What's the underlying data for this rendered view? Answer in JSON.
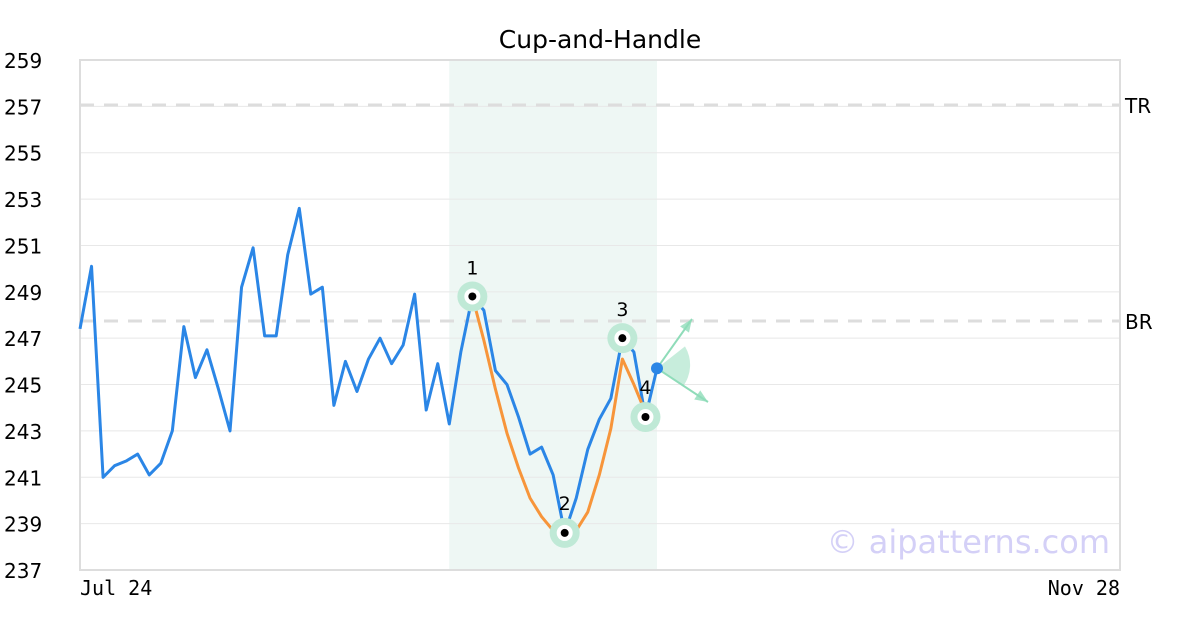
{
  "chart_data": {
    "type": "line",
    "title": "Cup-and-Handle",
    "ylim": [
      237,
      259
    ],
    "yticks": [
      237,
      239,
      241,
      243,
      245,
      247,
      249,
      251,
      253,
      255,
      257,
      259
    ],
    "xtick_labels": [
      {
        "index": 0,
        "label": "Jul 24"
      },
      {
        "index": 90,
        "label": "Nov 28"
      }
    ],
    "grid": true,
    "series": [
      {
        "color": "#2b86e6",
        "values": [
          247.4,
          250.1,
          241.0,
          241.5,
          241.7,
          242.0,
          241.1,
          241.6,
          243.0,
          247.5,
          245.3,
          246.5,
          244.8,
          243.0,
          249.2,
          250.9,
          247.1,
          247.1,
          250.6,
          252.6,
          248.9,
          249.2,
          244.1,
          246.0,
          244.7,
          246.1,
          247.0,
          245.9,
          246.7,
          248.9,
          243.9,
          245.9,
          243.3,
          246.4,
          248.8,
          248.2,
          245.6,
          245.0,
          243.6,
          242.0,
          242.3,
          241.1,
          238.6,
          240.1,
          242.2,
          243.5,
          244.4,
          247.0,
          246.4,
          243.6,
          245.7
        ]
      },
      {
        "color": "#f7953a",
        "start_index": 34,
        "values": [
          248.8,
          246.9,
          244.8,
          242.9,
          241.4,
          240.1,
          239.3,
          238.7,
          238.5,
          238.7,
          239.5,
          241.1,
          243.1,
          246.1,
          245.0,
          243.8
        ]
      }
    ],
    "highlight_range": [
      32,
      50
    ],
    "highlight_color": "#eef7f4",
    "levels": [
      {
        "label": "TR",
        "value": 257.06
      },
      {
        "label": "BR",
        "value": 247.74
      }
    ],
    "pivots": [
      {
        "label": "1",
        "index": 34,
        "value": 248.8
      },
      {
        "label": "2",
        "index": 42,
        "value": 238.6
      },
      {
        "label": "3",
        "index": 47,
        "value": 247.0
      },
      {
        "label": "4",
        "index": 49,
        "value": 243.6
      }
    ],
    "pivot_color": "#bfe9d6",
    "arrow_color": "#8fdcb9",
    "watermark": "© aipatterns.com"
  }
}
